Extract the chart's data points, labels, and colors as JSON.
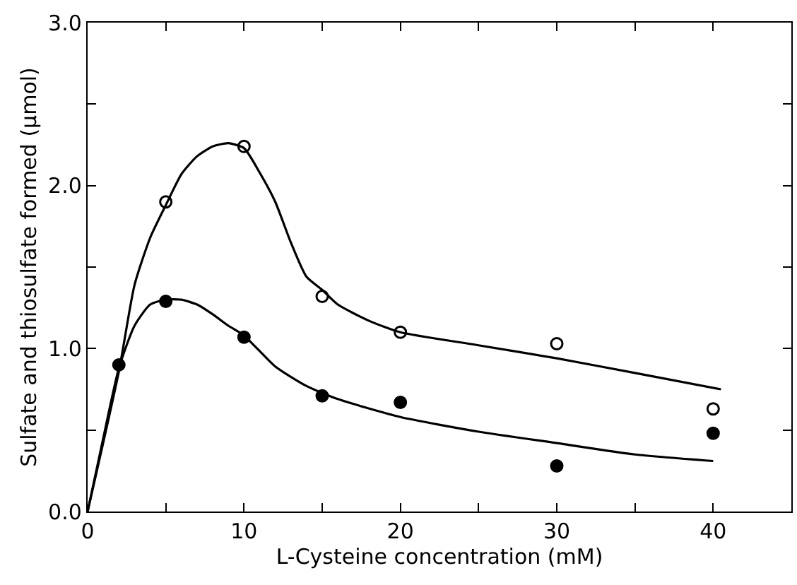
{
  "chart_data": {
    "type": "scatter",
    "xlabel": "L-Cysteine concentration (mM)",
    "ylabel": "Sulfate and thiosulfate formed (µmol)",
    "xlim": [
      0,
      45
    ],
    "ylim": [
      0,
      3.0
    ],
    "xticks": [
      0,
      {
        "value": 5,
        "label": null
      },
      10,
      {
        "value": 15,
        "label": null
      },
      20,
      {
        "value": 25,
        "label": null
      },
      30,
      {
        "value": 35,
        "label": null
      },
      40
    ],
    "yticks": [
      {
        "value": 0,
        "label": "0.0"
      },
      {
        "value": 0.5,
        "label": null
      },
      {
        "value": 1,
        "label": "1.0"
      },
      {
        "value": 1.5,
        "label": null
      },
      {
        "value": 2,
        "label": "2.0"
      },
      {
        "value": 2.5,
        "label": null
      },
      {
        "value": 3,
        "label": "3.0"
      }
    ],
    "series": [
      {
        "marker": "circle-open",
        "color": "#000000",
        "x": [
          5,
          10,
          15,
          20,
          30,
          40
        ],
        "values": [
          1.9,
          2.24,
          1.32,
          1.1,
          1.03,
          0.63
        ]
      },
      {
        "marker": "circle",
        "color": "#000000",
        "x": [
          2,
          5,
          10,
          15,
          20,
          30,
          40
        ],
        "values": [
          0.9,
          1.29,
          1.07,
          0.71,
          0.67,
          0.28,
          0.48
        ]
      },
      {
        "type": "line",
        "marker": "none",
        "line_style": "solid",
        "color": "#000000",
        "x": [
          0,
          2,
          3,
          4,
          5,
          6,
          7,
          8,
          9,
          10,
          11,
          12,
          13,
          14,
          15,
          16,
          18,
          20,
          25,
          30,
          35,
          40.5
        ],
        "values": [
          0,
          0.86,
          1.39,
          1.68,
          1.88,
          2.07,
          2.18,
          2.24,
          2.26,
          2.23,
          2.08,
          1.9,
          1.65,
          1.44,
          1.36,
          1.27,
          1.17,
          1.1,
          1.02,
          0.94,
          0.85,
          0.75
        ]
      },
      {
        "type": "line",
        "marker": "none",
        "line_style": "solid",
        "color": "#000000",
        "x": [
          0,
          1,
          2,
          3,
          4,
          5,
          6,
          7,
          8,
          9,
          10,
          12,
          14,
          16,
          20,
          25,
          30,
          35,
          40
        ],
        "values": [
          0,
          0.45,
          0.88,
          1.14,
          1.27,
          1.3,
          1.3,
          1.27,
          1.21,
          1.14,
          1.08,
          0.89,
          0.77,
          0.69,
          0.58,
          0.49,
          0.42,
          0.35,
          0.31
        ]
      }
    ]
  }
}
